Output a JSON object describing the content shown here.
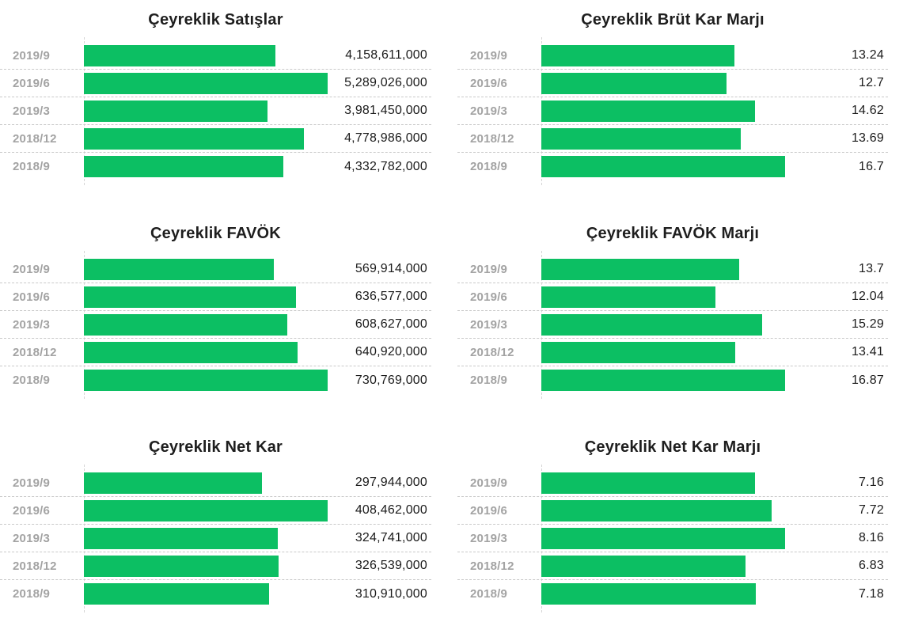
{
  "colors": {
    "bar": "#0cbf63",
    "period_label": "#a3a3a3",
    "value_label": "#1b1b1b",
    "title": "#1e1e1e",
    "grid_line": "#c9c9c9",
    "axis_line": "#d4d4d4",
    "background": "#ffffff"
  },
  "chart_data": [
    {
      "type": "bar",
      "orientation": "horizontal",
      "title": "Çeyreklik Satışlar",
      "categories": [
        "2019/9",
        "2019/6",
        "2019/3",
        "2018/12",
        "2018/9"
      ],
      "values": [
        4158611000,
        5289026000,
        3981450000,
        4778986000,
        4332782000
      ],
      "value_labels": [
        "4,158,611,000",
        "5,289,026,000",
        "3,981,450,000",
        "4,778,986,000",
        "4,332,782,000"
      ],
      "xlim": [
        0,
        5289026000
      ],
      "grid": "dashed-row-separators",
      "legend": "none"
    },
    {
      "type": "bar",
      "orientation": "horizontal",
      "title": "Çeyreklik Brüt Kar Marjı",
      "categories": [
        "2019/9",
        "2019/6",
        "2019/3",
        "2018/12",
        "2018/9"
      ],
      "values": [
        13.24,
        12.7,
        14.62,
        13.69,
        16.7
      ],
      "value_labels": [
        "13.24",
        "12.7",
        "14.62",
        "13.69",
        "16.7"
      ],
      "xlim": [
        0,
        16.7
      ],
      "grid": "dashed-row-separators",
      "legend": "none"
    },
    {
      "type": "bar",
      "orientation": "horizontal",
      "title": "Çeyreklik FAVÖK",
      "categories": [
        "2019/9",
        "2019/6",
        "2019/3",
        "2018/12",
        "2018/9"
      ],
      "values": [
        569914000,
        636577000,
        608627000,
        640920000,
        730769000
      ],
      "value_labels": [
        "569,914,000",
        "636,577,000",
        "608,627,000",
        "640,920,000",
        "730,769,000"
      ],
      "xlim": [
        0,
        730769000
      ],
      "grid": "dashed-row-separators",
      "legend": "none"
    },
    {
      "type": "bar",
      "orientation": "horizontal",
      "title": "Çeyreklik FAVÖK Marjı",
      "categories": [
        "2019/9",
        "2019/6",
        "2019/3",
        "2018/12",
        "2018/9"
      ],
      "values": [
        13.7,
        12.04,
        15.29,
        13.41,
        16.87
      ],
      "value_labels": [
        "13.7",
        "12.04",
        "15.29",
        "13.41",
        "16.87"
      ],
      "xlim": [
        0,
        16.87
      ],
      "grid": "dashed-row-separators",
      "legend": "none"
    },
    {
      "type": "bar",
      "orientation": "horizontal",
      "title": "Çeyreklik Net Kar",
      "categories": [
        "2019/9",
        "2019/6",
        "2019/3",
        "2018/12",
        "2018/9"
      ],
      "values": [
        297944000,
        408462000,
        324741000,
        326539000,
        310910000
      ],
      "value_labels": [
        "297,944,000",
        "408,462,000",
        "324,741,000",
        "326,539,000",
        "310,910,000"
      ],
      "xlim": [
        0,
        408462000
      ],
      "grid": "dashed-row-separators",
      "legend": "none"
    },
    {
      "type": "bar",
      "orientation": "horizontal",
      "title": "Çeyreklik Net Kar Marjı",
      "categories": [
        "2019/9",
        "2019/6",
        "2019/3",
        "2018/12",
        "2018/9"
      ],
      "values": [
        7.16,
        7.72,
        8.16,
        6.83,
        7.18
      ],
      "value_labels": [
        "7.16",
        "7.72",
        "8.16",
        "6.83",
        "7.18"
      ],
      "xlim": [
        0,
        8.16
      ],
      "grid": "dashed-row-separators",
      "legend": "none"
    }
  ]
}
